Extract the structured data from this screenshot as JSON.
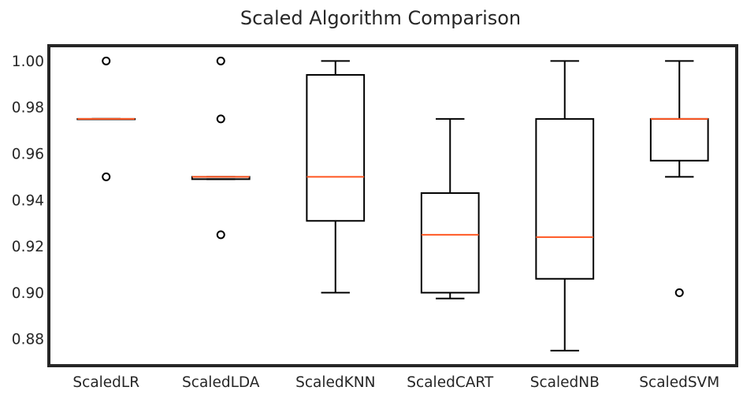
{
  "chart_data": {
    "type": "box",
    "title": "Scaled Algorithm Comparison",
    "xlabel": "",
    "ylabel": "",
    "ylim": [
      0.8685,
      1.0066
    ],
    "yticks": [
      {
        "value": 1.0,
        "label": "1.00"
      },
      {
        "value": 0.98,
        "label": "0.98"
      },
      {
        "value": 0.96,
        "label": "0.96"
      },
      {
        "value": 0.94,
        "label": "0.94"
      },
      {
        "value": 0.92,
        "label": "0.92"
      },
      {
        "value": 0.9,
        "label": "0.90"
      },
      {
        "value": 0.88,
        "label": "0.88"
      }
    ],
    "grid": false,
    "categories": [
      "ScaledLR",
      "ScaledLDA",
      "ScaledKNN",
      "ScaledCART",
      "ScaledNB",
      "ScaledSVM"
    ],
    "boxes": [
      {
        "name": "ScaledLR",
        "whisker_low": 0.975,
        "q1": 0.975,
        "median": 0.975,
        "q3": 0.975,
        "whisker_high": 0.975,
        "outliers": [
          1.0,
          0.95
        ]
      },
      {
        "name": "ScaledLDA",
        "whisker_low": 0.949,
        "q1": 0.949,
        "median": 0.95,
        "q3": 0.95,
        "whisker_high": 0.95,
        "outliers": [
          1.0,
          0.975,
          0.925
        ]
      },
      {
        "name": "ScaledKNN",
        "whisker_low": 0.9,
        "q1": 0.931,
        "median": 0.95,
        "q3": 0.994,
        "whisker_high": 1.0,
        "outliers": []
      },
      {
        "name": "ScaledCART",
        "whisker_low": 0.8975,
        "q1": 0.9,
        "median": 0.925,
        "q3": 0.943,
        "whisker_high": 0.975,
        "outliers": []
      },
      {
        "name": "ScaledNB",
        "whisker_low": 0.875,
        "q1": 0.906,
        "median": 0.924,
        "q3": 0.975,
        "whisker_high": 1.0,
        "outliers": []
      },
      {
        "name": "ScaledSVM",
        "whisker_low": 0.95,
        "q1": 0.957,
        "median": 0.975,
        "q3": 0.975,
        "whisker_high": 1.0,
        "outliers": [
          0.9
        ]
      }
    ],
    "colors": {
      "box": "#000000",
      "median": "#ff5722",
      "frame": "#262626",
      "text": "#262626",
      "background": "#ffffff"
    }
  }
}
